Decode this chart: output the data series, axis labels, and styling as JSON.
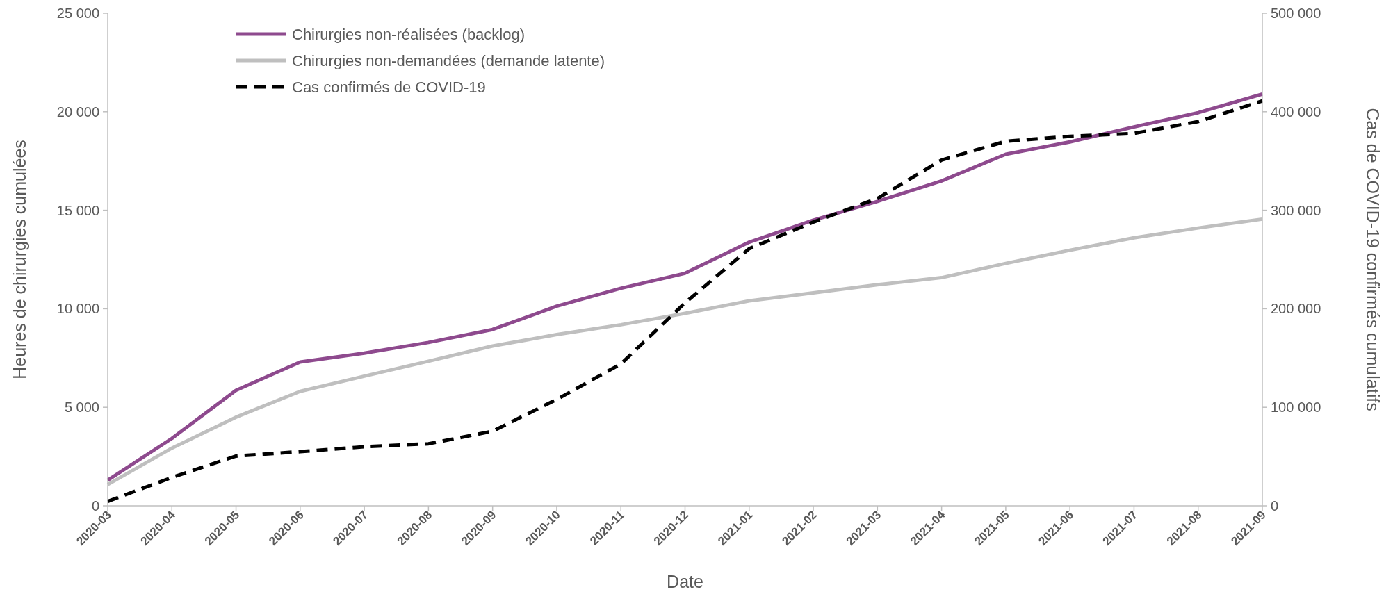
{
  "chart_data": {
    "type": "line",
    "xlabel": "Date",
    "ylabel": "Heures de chirurgies cumulées",
    "y2label": "Cas de COVID-19 confirmés cumulatifs",
    "categories": [
      "2020-03",
      "2020-04",
      "2020-05",
      "2020-06",
      "2020-07",
      "2020-08",
      "2020-09",
      "2020-10",
      "2020-11",
      "2020-12",
      "2021-01",
      "2021-02",
      "2021-03",
      "2021-04",
      "2021-05",
      "2021-06",
      "2021-07",
      "2021-08",
      "2021-09"
    ],
    "series": [
      {
        "name": "Chirurgies non-réalisées (backlog)",
        "color": "#8e4a8e",
        "line_style": "solid",
        "values": [
          1300,
          3420,
          5860,
          7300,
          7750,
          8290,
          8950,
          10130,
          11040,
          11800,
          13380,
          14500,
          15450,
          16490,
          17840,
          18470,
          19230,
          19950,
          20900
        ]
      },
      {
        "name": "Chirurgies non-demandées (demande latente)",
        "color": "#bfbfbf",
        "line_style": "solid",
        "values": [
          1080,
          2930,
          4500,
          5810,
          6580,
          7340,
          8110,
          8690,
          9190,
          9770,
          10400,
          10810,
          11220,
          11580,
          12300,
          12970,
          13600,
          14100,
          14550
        ]
      },
      {
        "name": "Cas confirmés de COVID-19",
        "color": "#000000",
        "line_style": "dashed",
        "axis": "y2",
        "values": [
          4500,
          28800,
          50500,
          55000,
          60000,
          63000,
          75700,
          108000,
          144000,
          206000,
          261000,
          288000,
          312000,
          351000,
          370000,
          375000,
          378000,
          390000,
          411000
        ]
      }
    ],
    "ylim": [
      0,
      25000
    ],
    "yticks": [
      0,
      {
        "value": 5000,
        "label": "5 000"
      },
      {
        "value": 10000,
        "label": "10 000"
      },
      {
        "value": 15000,
        "label": "15 000"
      },
      {
        "value": 20000,
        "label": "20 000"
      },
      {
        "value": 25000,
        "label": "25 000"
      }
    ],
    "y2lim": [
      0,
      500000
    ],
    "y2ticks": [
      0,
      {
        "value": 100000,
        "label": "100 000"
      },
      {
        "value": 200000,
        "label": "200 000"
      },
      {
        "value": 300000,
        "label": "300 000"
      },
      {
        "value": 400000,
        "label": "400 000"
      },
      {
        "value": 500000,
        "label": "500 000"
      }
    ],
    "grid": false,
    "legend": "top left",
    "marker": "none"
  }
}
